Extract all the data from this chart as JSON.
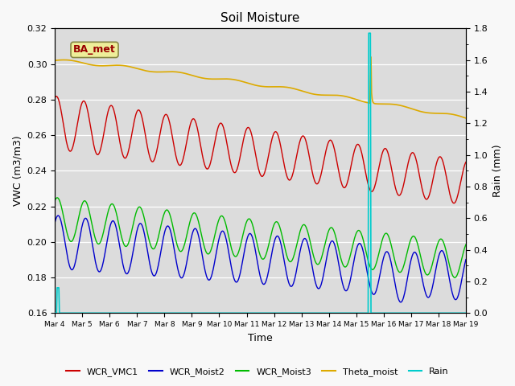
{
  "title": "Soil Moisture",
  "ylabel_left": "VWC (m3/m3)",
  "ylabel_right": "Rain (mm)",
  "xlabel": "Time",
  "station_label": "BA_met",
  "ylim_left": [
    0.16,
    0.32
  ],
  "ylim_right": [
    0.0,
    1.8
  ],
  "yticks_left": [
    0.16,
    0.18,
    0.2,
    0.22,
    0.24,
    0.26,
    0.28,
    0.3,
    0.32
  ],
  "yticks_right": [
    0.0,
    0.2,
    0.4,
    0.6,
    0.8,
    1.0,
    1.2,
    1.4,
    1.6,
    1.8
  ],
  "colors": {
    "WCR_VMC1": "#cc0000",
    "WCR_Moist2": "#0000cc",
    "WCR_Moist3": "#00bb00",
    "Theta_moist": "#ddaa00",
    "Rain": "#00cccc"
  },
  "background_color": "#dcdcdc",
  "fig_background": "#f8f8f8",
  "xtick_labels": [
    "Mar 4",
    "Mar 5",
    "Mar 6",
    "Mar 7",
    "Mar 8",
    "Mar 9",
    "Mar 10",
    "Mar 11",
    "Mar 12",
    "Mar 13",
    "Mar 14",
    "Mar 15",
    "Mar 16",
    "Mar 17",
    "Mar 18",
    "Mar 19"
  ],
  "rain_small_spike_day": 0.12,
  "rain_big_spike_day": 11.5,
  "rain_small_val": 0.16,
  "rain_big_val": 1.77
}
